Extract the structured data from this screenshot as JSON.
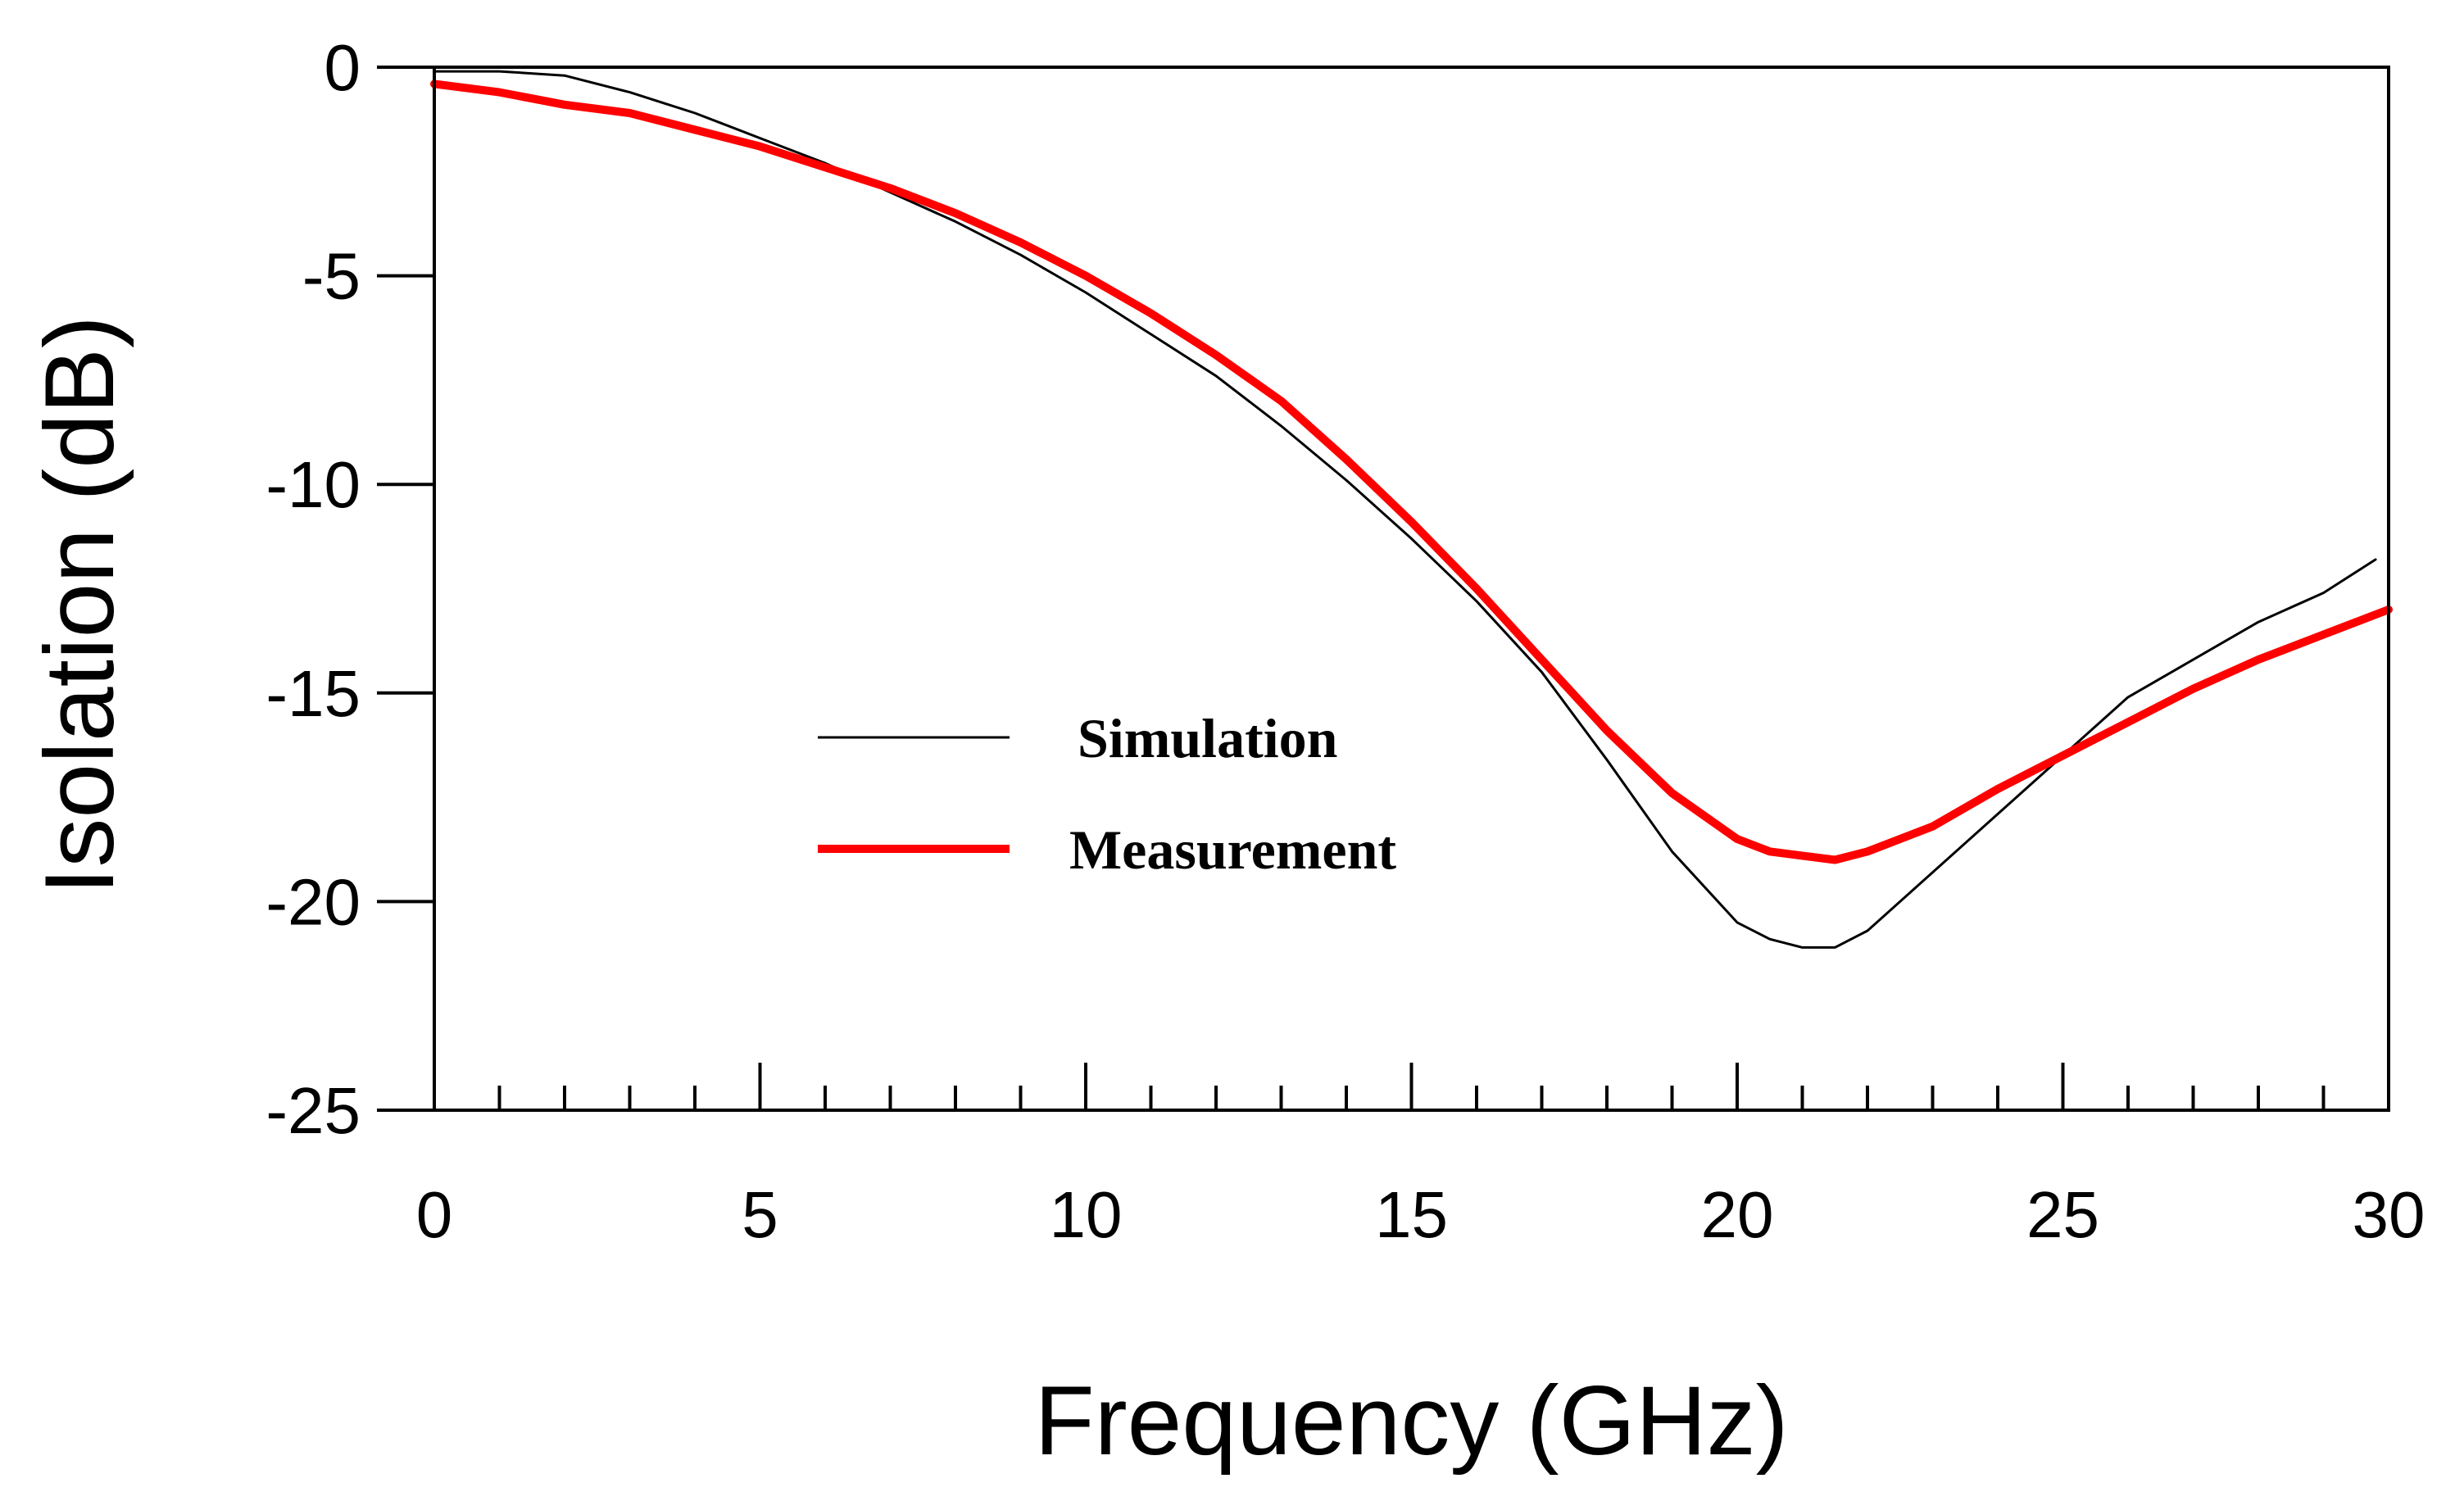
{
  "chart_data": {
    "type": "line",
    "title": "",
    "xlabel": "Frequency (GHz)",
    "ylabel": "Isolation (dB)",
    "xlim": [
      0,
      30
    ],
    "ylim": [
      -25,
      0
    ],
    "x_major_ticks": [
      0,
      5,
      10,
      15,
      20,
      25,
      30
    ],
    "x_minor_step": 1,
    "y_major_ticks": [
      0,
      -5,
      -10,
      -15,
      -20,
      -25
    ],
    "grid": false,
    "legend_position": "center",
    "series": [
      {
        "name": "Simulation",
        "color": "#000000",
        "x": [
          0,
          1,
          2,
          3,
          4,
          5,
          6,
          7,
          8,
          9,
          10,
          11,
          12,
          13,
          14,
          15,
          16,
          17,
          18,
          19,
          20,
          20.5,
          21,
          21.5,
          22,
          23,
          24,
          25,
          26,
          27,
          28,
          29,
          29.8
        ],
        "y": [
          -0.1,
          -0.1,
          -0.2,
          -0.6,
          -1.1,
          -1.7,
          -2.3,
          -3.0,
          -3.7,
          -4.5,
          -5.4,
          -6.4,
          -7.4,
          -8.6,
          -9.9,
          -11.3,
          -12.8,
          -14.5,
          -16.6,
          -18.8,
          -20.5,
          -20.9,
          -21.1,
          -21.1,
          -20.7,
          -19.3,
          -17.9,
          -16.5,
          -15.1,
          -14.2,
          -13.3,
          -12.6,
          -11.8
        ]
      },
      {
        "name": "Measurement",
        "color": "#ff0000",
        "x": [
          0,
          1,
          2,
          3,
          4,
          5,
          6,
          7,
          8,
          9,
          10,
          11,
          12,
          13,
          14,
          15,
          16,
          17,
          18,
          19,
          20,
          20.5,
          21,
          21.5,
          22,
          23,
          24,
          25,
          26,
          27,
          28,
          29,
          30
        ],
        "y": [
          -0.4,
          -0.6,
          -0.9,
          -1.1,
          -1.5,
          -1.9,
          -2.4,
          -2.9,
          -3.5,
          -4.2,
          -5.0,
          -5.9,
          -6.9,
          -8.0,
          -9.4,
          -10.9,
          -12.5,
          -14.2,
          -15.9,
          -17.4,
          -18.5,
          -18.8,
          -18.9,
          -19.0,
          -18.8,
          -18.2,
          -17.3,
          -16.5,
          -15.7,
          -14.9,
          -14.2,
          -13.6,
          -13.0
        ]
      }
    ]
  }
}
